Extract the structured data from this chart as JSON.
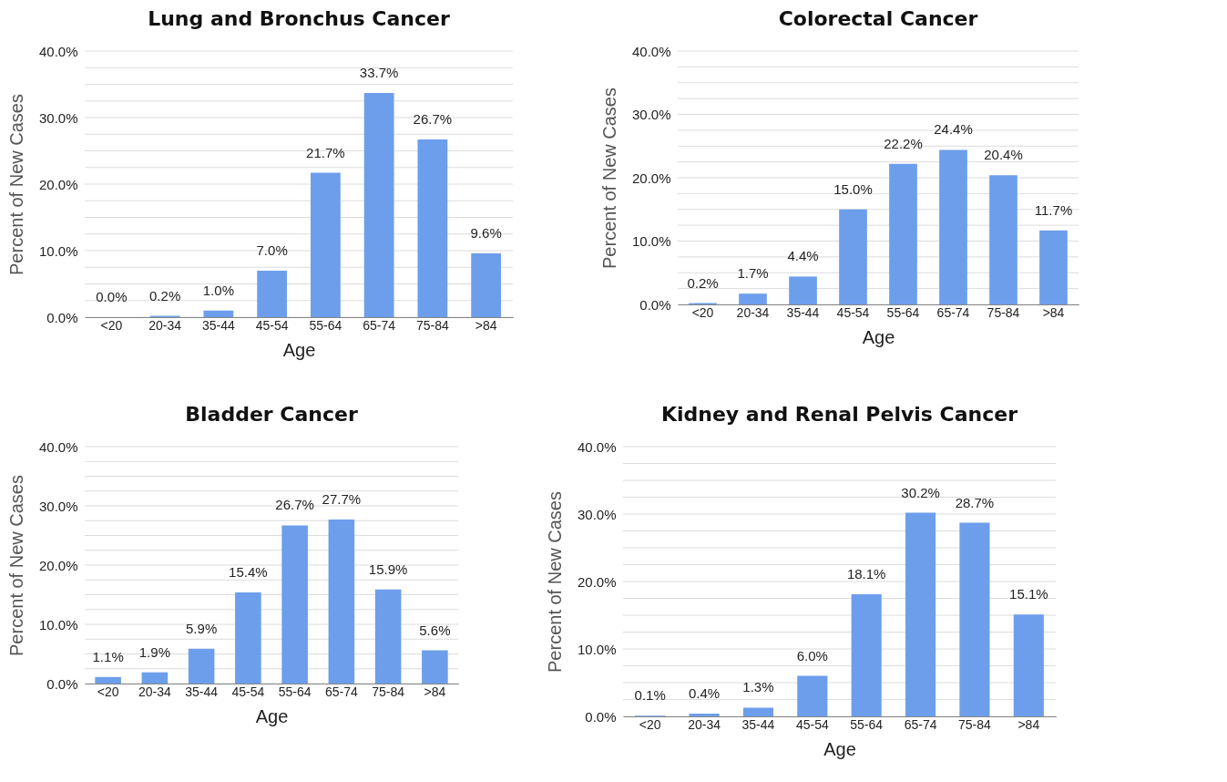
{
  "chart_data": [
    {
      "type": "bar",
      "title": "Lung and Bronchus Cancer",
      "xlabel": "Age",
      "ylabel": "Percent of New Cases",
      "categories": [
        "<20",
        "20-34",
        "35-44",
        "45-54",
        "55-64",
        "65-74",
        "75-84",
        ">84"
      ],
      "values": [
        0.0,
        0.2,
        1.0,
        7.0,
        21.7,
        33.7,
        26.7,
        9.6
      ],
      "value_labels": [
        "0.0%",
        "0.2%",
        "1.0%",
        "7.0%",
        "21.7%",
        "33.7%",
        "26.7%",
        "9.6%"
      ],
      "color": "#6d9eeb",
      "ylim": [
        0,
        40
      ],
      "yticks": [
        {
          "value": 0,
          "label": "0.0%"
        },
        {
          "value": 2.5,
          "label": null
        },
        {
          "value": 5,
          "label": null
        },
        {
          "value": 7.5,
          "label": null
        },
        {
          "value": 10,
          "label": "10.0%"
        },
        {
          "value": 12.5,
          "label": null
        },
        {
          "value": 15,
          "label": null
        },
        {
          "value": 17.5,
          "label": null
        },
        {
          "value": 20,
          "label": "20.0%"
        },
        {
          "value": 22.5,
          "label": null
        },
        {
          "value": 25,
          "label": null
        },
        {
          "value": 27.5,
          "label": null
        },
        {
          "value": 30,
          "label": "30.0%"
        },
        {
          "value": 32.5,
          "label": null
        },
        {
          "value": 35,
          "label": null
        },
        {
          "value": 37.5,
          "label": null
        },
        {
          "value": 40,
          "label": "40.0%"
        }
      ],
      "grid": "y"
    },
    {
      "type": "bar",
      "title": "Colorectal Cancer",
      "xlabel": "Age",
      "ylabel": "Percent of New Cases",
      "categories": [
        "<20",
        "20-34",
        "35-44",
        "45-54",
        "55-64",
        "65-74",
        "75-84",
        ">84"
      ],
      "values": [
        0.2,
        1.7,
        4.4,
        15.0,
        22.2,
        24.4,
        20.4,
        11.7
      ],
      "value_labels": [
        "0.2%",
        "1.7%",
        "4.4%",
        "15.0%",
        "22.2%",
        "24.4%",
        "20.4%",
        "11.7%"
      ],
      "color": "#6d9eeb",
      "ylim": [
        0,
        40
      ],
      "yticks": [
        {
          "value": 0,
          "label": "0.0%"
        },
        {
          "value": 2.5,
          "label": null
        },
        {
          "value": 5,
          "label": null
        },
        {
          "value": 7.5,
          "label": null
        },
        {
          "value": 10,
          "label": "10.0%"
        },
        {
          "value": 12.5,
          "label": null
        },
        {
          "value": 15,
          "label": null
        },
        {
          "value": 17.5,
          "label": null
        },
        {
          "value": 20,
          "label": "20.0%"
        },
        {
          "value": 22.5,
          "label": null
        },
        {
          "value": 25,
          "label": null
        },
        {
          "value": 27.5,
          "label": null
        },
        {
          "value": 30,
          "label": "30.0%"
        },
        {
          "value": 32.5,
          "label": null
        },
        {
          "value": 35,
          "label": null
        },
        {
          "value": 37.5,
          "label": null
        },
        {
          "value": 40,
          "label": "40.0%"
        }
      ],
      "grid": "y"
    },
    {
      "type": "bar",
      "title": "Bladder Cancer",
      "xlabel": "Age",
      "ylabel": "Percent of New Cases",
      "categories": [
        "<20",
        "20-34",
        "35-44",
        "45-54",
        "55-64",
        "65-74",
        "75-84",
        ">84"
      ],
      "values": [
        1.1,
        1.9,
        5.9,
        15.4,
        26.7,
        27.7,
        15.9,
        5.6
      ],
      "value_labels": [
        "1.1%",
        "1.9%",
        "5.9%",
        "15.4%",
        "26.7%",
        "27.7%",
        "15.9%",
        "5.6%"
      ],
      "color": "#6d9eeb",
      "ylim": [
        0,
        40
      ],
      "yticks": [
        {
          "value": 0,
          "label": "0.0%"
        },
        {
          "value": 2.5,
          "label": null
        },
        {
          "value": 5,
          "label": null
        },
        {
          "value": 7.5,
          "label": null
        },
        {
          "value": 10,
          "label": "10.0%"
        },
        {
          "value": 12.5,
          "label": null
        },
        {
          "value": 15,
          "label": null
        },
        {
          "value": 17.5,
          "label": null
        },
        {
          "value": 20,
          "label": "20.0%"
        },
        {
          "value": 22.5,
          "label": null
        },
        {
          "value": 25,
          "label": null
        },
        {
          "value": 27.5,
          "label": null
        },
        {
          "value": 30,
          "label": "30.0%"
        },
        {
          "value": 32.5,
          "label": null
        },
        {
          "value": 35,
          "label": null
        },
        {
          "value": 37.5,
          "label": null
        },
        {
          "value": 40,
          "label": "40.0%"
        }
      ],
      "grid": "y"
    },
    {
      "type": "bar",
      "title": "Kidney and Renal Pelvis Cancer",
      "xlabel": "Age",
      "ylabel": "Percent of New Cases",
      "categories": [
        "<20",
        "20-34",
        "35-44",
        "45-54",
        "55-64",
        "65-74",
        "75-84",
        ">84"
      ],
      "values": [
        0.1,
        0.4,
        1.3,
        6.0,
        18.1,
        30.2,
        28.7,
        15.1
      ],
      "value_labels": [
        "0.1%",
        "0.4%",
        "1.3%",
        "6.0%",
        "18.1%",
        "30.2%",
        "28.7%",
        "15.1%"
      ],
      "color": "#6d9eeb",
      "ylim": [
        0,
        40
      ],
      "yticks": [
        {
          "value": 0,
          "label": "0.0%"
        },
        {
          "value": 2.5,
          "label": null
        },
        {
          "value": 5,
          "label": null
        },
        {
          "value": 7.5,
          "label": null
        },
        {
          "value": 10,
          "label": "10.0%"
        },
        {
          "value": 12.5,
          "label": null
        },
        {
          "value": 15,
          "label": null
        },
        {
          "value": 17.5,
          "label": null
        },
        {
          "value": 20,
          "label": "20.0%"
        },
        {
          "value": 22.5,
          "label": null
        },
        {
          "value": 25,
          "label": null
        },
        {
          "value": 27.5,
          "label": null
        },
        {
          "value": 30,
          "label": "30.0%"
        },
        {
          "value": 32.5,
          "label": null
        },
        {
          "value": 35,
          "label": null
        },
        {
          "value": 37.5,
          "label": null
        },
        {
          "value": 40,
          "label": "40.0%"
        }
      ],
      "grid": "y"
    }
  ]
}
